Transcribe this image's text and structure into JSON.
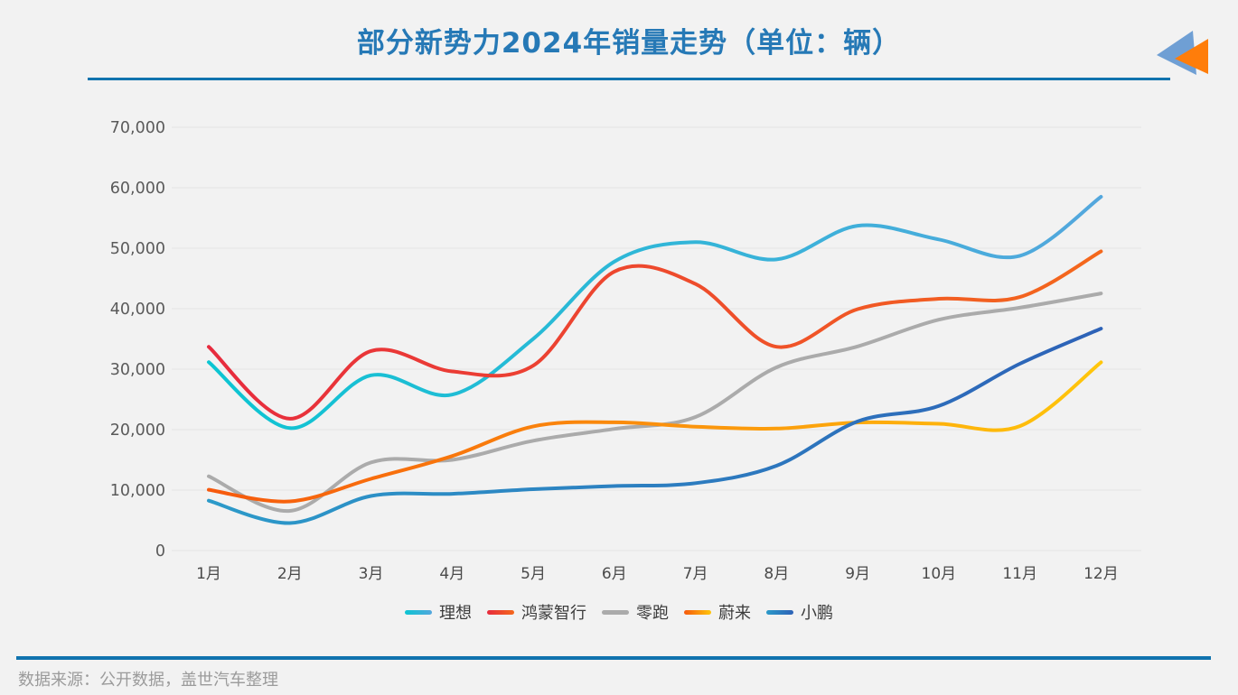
{
  "page": {
    "background": "#f2f2f2"
  },
  "header": {
    "title": "部分新势力2024年销量走势（单位：辆）",
    "title_color": "#2679b6",
    "rule_color": "#1073ae"
  },
  "logo": {
    "back_triangle_color": "#6f9fd4",
    "front_triangle_color": "#ff7d0a"
  },
  "chart_data": {
    "type": "line",
    "smooth": true,
    "title": "部分新势力2024年销量走势（单位：辆）",
    "unit": "辆",
    "grid": true,
    "legend_position": "bottom",
    "categories": [
      "1月",
      "2月",
      "3月",
      "4月",
      "5月",
      "6月",
      "7月",
      "8月",
      "9月",
      "10月",
      "11月",
      "12月"
    ],
    "y_axis": {
      "min": 0,
      "max": 70000,
      "step": 10000,
      "tick_labels": [
        "0",
        "10,000",
        "20,000",
        "30,000",
        "40,000",
        "50,000",
        "60,000",
        "70,000"
      ]
    },
    "series": [
      {
        "name": "理想",
        "slug": "lixiang",
        "color_start": "#0cc5d2",
        "color_end": "#54a7dd",
        "values": [
          31165,
          20251,
          28984,
          25787,
          35020,
          47774,
          51000,
          48144,
          53709,
          51443,
          48740,
          58513
        ]
      },
      {
        "name": "鸿蒙智行",
        "slug": "hongmeng-zhixing",
        "color_start": "#e72b3e",
        "color_end": "#f4681c",
        "values": [
          33700,
          21800,
          33000,
          29632,
          30578,
          46141,
          44090,
          33699,
          39931,
          41643,
          41931,
          49474
        ]
      },
      {
        "name": "零跑",
        "slug": "lingpao",
        "color_start": "#ababab",
        "color_end": "#ababab",
        "values": [
          12277,
          6566,
          14567,
          15005,
          18165,
          20116,
          22093,
          30305,
          33767,
          38177,
          40169,
          42517
        ]
      },
      {
        "name": "蔚来",
        "slug": "weilai",
        "color_start": "#f6590d",
        "color_end": "#ffc60b",
        "values": [
          10055,
          8132,
          11866,
          15620,
          20544,
          21209,
          20498,
          20176,
          21181,
          20976,
          20575,
          31138
        ]
      },
      {
        "name": "小鹏",
        "slug": "xiaopeng",
        "color_start": "#2c9ac9",
        "color_end": "#2d62b7",
        "values": [
          8250,
          4545,
          9026,
          9393,
          10146,
          10668,
          11145,
          14036,
          21352,
          23917,
          30895,
          36695
        ]
      }
    ]
  },
  "footer": {
    "source_text": "数据来源：公开数据，盖世汽车整理",
    "rule_color": "#1073ae",
    "text_color": "#9b9b9b"
  }
}
